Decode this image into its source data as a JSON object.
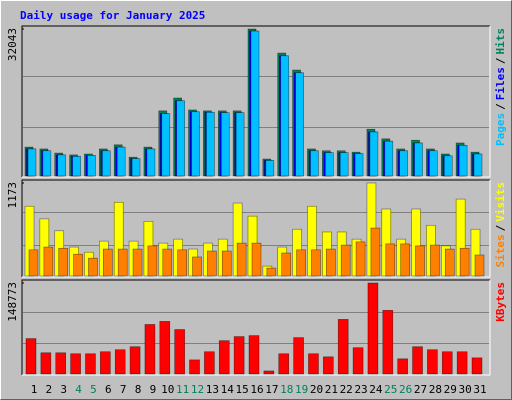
{
  "chart_data": [
    {
      "type": "bar",
      "title": "Daily usage for January 2025",
      "ylim": [
        0,
        32043
      ],
      "yticks": [
        32043
      ],
      "legend_separator": "/",
      "grid": true,
      "series": [
        {
          "name": "Hits",
          "color": "#00805c",
          "values": [
            6300,
            5900,
            5000,
            4600,
            4800,
            5900,
            6800,
            4100,
            6300,
            14200,
            17000,
            14400,
            14200,
            14200,
            14200,
            32043,
            3700,
            26800,
            23100,
            5900,
            5500,
            5500,
            5200,
            10200,
            8100,
            5900,
            7800,
            5900,
            4800,
            7200,
            5200
          ]
        },
        {
          "name": "Files",
          "color": "#0000ff",
          "values": [
            5900,
            5500,
            4600,
            4300,
            4500,
            5500,
            6300,
            3800,
            5900,
            13600,
            16400,
            14000,
            13900,
            13800,
            13800,
            31600,
            3400,
            26200,
            22500,
            5500,
            5100,
            5100,
            4900,
            9600,
            7600,
            5500,
            7200,
            5500,
            4400,
            6700,
            4800
          ]
        },
        {
          "name": "Pages",
          "color": "#00c0ff",
          "values": [
            5900,
            5500,
            4600,
            4300,
            4500,
            5500,
            6300,
            3800,
            5900,
            13600,
            16400,
            14000,
            13900,
            13800,
            13800,
            31600,
            3400,
            26200,
            22500,
            5500,
            5100,
            5100,
            4900,
            9600,
            7600,
            5500,
            7200,
            5500,
            4400,
            6700,
            4800
          ]
        }
      ]
    },
    {
      "type": "bar",
      "ylim": [
        0,
        1173
      ],
      "yticks": [
        1173
      ],
      "legend_separator": "/",
      "grid": true,
      "series": [
        {
          "name": "Visits",
          "color": "#ffff00",
          "values": [
            880,
            720,
            570,
            365,
            300,
            440,
            930,
            440,
            690,
            415,
            465,
            340,
            415,
            465,
            920,
            755,
            125,
            365,
            590,
            880,
            555,
            555,
            465,
            1173,
            845,
            465,
            845,
            640,
            380,
            970,
            590
          ]
        },
        {
          "name": "Sites",
          "color": "#ff8000",
          "values": [
            330,
            365,
            350,
            275,
            225,
            340,
            340,
            340,
            380,
            340,
            330,
            240,
            315,
            315,
            415,
            415,
            100,
            290,
            330,
            330,
            340,
            390,
            430,
            605,
            405,
            405,
            380,
            390,
            340,
            350,
            265
          ]
        }
      ]
    },
    {
      "type": "bar",
      "ylim": [
        0,
        148773
      ],
      "yticks": [
        148773
      ],
      "grid": true,
      "categories": [
        "1",
        "2",
        "3",
        "4",
        "5",
        "6",
        "7",
        "8",
        "9",
        "10",
        "11",
        "12",
        "13",
        "14",
        "15",
        "16",
        "17",
        "18",
        "19",
        "20",
        "21",
        "22",
        "23",
        "24",
        "25",
        "26",
        "27",
        "28",
        "29",
        "30",
        "31"
      ],
      "category_colors": [
        "#000000",
        "#000000",
        "#000000",
        "#00805c",
        "#00805c",
        "#000000",
        "#000000",
        "#000000",
        "#000000",
        "#000000",
        "#00805c",
        "#00805c",
        "#000000",
        "#000000",
        "#000000",
        "#000000",
        "#000000",
        "#00805c",
        "#00805c",
        "#000000",
        "#000000",
        "#000000",
        "#000000",
        "#000000",
        "#00805c",
        "#00805c",
        "#000000",
        "#000000",
        "#000000",
        "#000000",
        "#000000"
      ],
      "series": [
        {
          "name": "KBytes",
          "color": "#ff0000",
          "values": [
            57900,
            34700,
            34700,
            33100,
            33100,
            36400,
            39700,
            44600,
            81000,
            86000,
            72700,
            23100,
            36400,
            54500,
            61200,
            62800,
            5000,
            33100,
            59500,
            33100,
            28100,
            89300,
            43000,
            148773,
            104100,
            24800,
            44600,
            39700,
            36400,
            36400,
            26400
          ]
        }
      ]
    }
  ]
}
